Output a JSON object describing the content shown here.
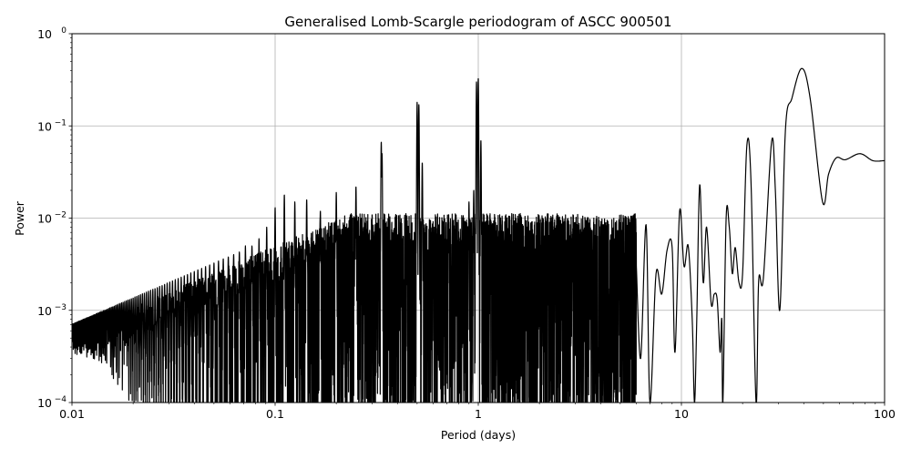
{
  "chart_data": {
    "type": "line",
    "title": "Generalised Lomb-Scargle periodogram of ASCC 900501",
    "xlabel": "Period (days)",
    "ylabel": "Power",
    "xscale": "log",
    "yscale": "log",
    "xlim": [
      0.01,
      100
    ],
    "ylim": [
      0.0001,
      1
    ],
    "grid": true,
    "xticks": [
      {
        "value": 0.01,
        "label": "0.01"
      },
      {
        "value": 0.1,
        "label": "0.1"
      },
      {
        "value": 1,
        "label": "1"
      },
      {
        "value": 10,
        "label": "10"
      },
      {
        "value": 100,
        "label": "100"
      }
    ],
    "yticks": [
      {
        "value": 0.0001,
        "base": "10",
        "exp": "−4"
      },
      {
        "value": 0.001,
        "base": "10",
        "exp": "−3"
      },
      {
        "value": 0.01,
        "base": "10",
        "exp": "−2"
      },
      {
        "value": 0.1,
        "base": "10",
        "exp": "−1"
      },
      {
        "value": 1,
        "base": "10",
        "exp": "0"
      }
    ],
    "line_color": "#000000",
    "grid_color": "#b0b0b0",
    "noise_region": {
      "period_range": [
        0.01,
        6
      ],
      "envelope_power_at_0.01": 0.0002,
      "envelope_power_at_0.5": 0.0035
    },
    "peaks": [
      [
        1.0,
        0.33
      ],
      [
        0.98,
        0.3
      ],
      [
        1.03,
        0.07
      ],
      [
        0.5,
        0.18
      ],
      [
        0.51,
        0.17
      ],
      [
        0.53,
        0.04
      ],
      [
        0.333,
        0.067
      ],
      [
        0.336,
        0.05
      ],
      [
        0.25,
        0.022
      ],
      [
        0.2,
        0.019
      ],
      [
        0.167,
        0.012
      ],
      [
        0.143,
        0.016
      ],
      [
        0.125,
        0.015
      ],
      [
        0.111,
        0.018
      ],
      [
        0.1,
        0.013
      ],
      [
        0.0909,
        0.008
      ],
      [
        0.0833,
        0.006
      ],
      [
        0.0769,
        0.005
      ],
      [
        0.0714,
        0.005
      ],
      [
        0.0667,
        0.004
      ],
      [
        0.0625,
        0.004
      ],
      [
        0.5,
        0.02
      ],
      [
        0.95,
        0.02
      ],
      [
        0.9,
        0.015
      ],
      [
        2.9,
        0.006
      ]
    ],
    "smooth_points": [
      [
        6.0,
        0.003
      ],
      [
        6.3,
        0.0003
      ],
      [
        6.7,
        0.0085
      ],
      [
        7.0,
        0.0001
      ],
      [
        7.5,
        0.0025
      ],
      [
        8.0,
        0.0015
      ],
      [
        8.5,
        0.0045
      ],
      [
        9.0,
        0.0048
      ],
      [
        9.3,
        0.00035
      ],
      [
        9.8,
        0.012
      ],
      [
        10.3,
        0.003
      ],
      [
        10.8,
        0.005
      ],
      [
        11.3,
        0.0008
      ],
      [
        11.6,
        0.0001
      ],
      [
        11.9,
        0.0008
      ],
      [
        12.3,
        0.023
      ],
      [
        12.8,
        0.002
      ],
      [
        13.3,
        0.008
      ],
      [
        14.0,
        0.0012
      ],
      [
        14.5,
        0.0015
      ],
      [
        15.0,
        0.0013
      ],
      [
        15.5,
        0.00035
      ],
      [
        15.8,
        0.0008
      ],
      [
        16.0,
        0.0001
      ],
      [
        16.6,
        0.01
      ],
      [
        17.2,
        0.008
      ],
      [
        17.8,
        0.0025
      ],
      [
        18.4,
        0.0048
      ],
      [
        19.2,
        0.002
      ],
      [
        20.0,
        0.0025
      ],
      [
        21.0,
        0.062
      ],
      [
        22.0,
        0.025
      ],
      [
        23.3,
        0.0001
      ],
      [
        24.0,
        0.0021
      ],
      [
        25.3,
        0.0022
      ],
      [
        27.8,
        0.068
      ],
      [
        29.0,
        0.02
      ],
      [
        30.5,
        0.001
      ],
      [
        32.5,
        0.09
      ],
      [
        35.0,
        0.2
      ],
      [
        39.1,
        0.42
      ],
      [
        43.0,
        0.2
      ],
      [
        49.5,
        0.015
      ],
      [
        53.0,
        0.03
      ],
      [
        57.8,
        0.045
      ],
      [
        64.1,
        0.043
      ],
      [
        75.7,
        0.05
      ],
      [
        87.5,
        0.042
      ],
      [
        100,
        0.042
      ]
    ]
  }
}
